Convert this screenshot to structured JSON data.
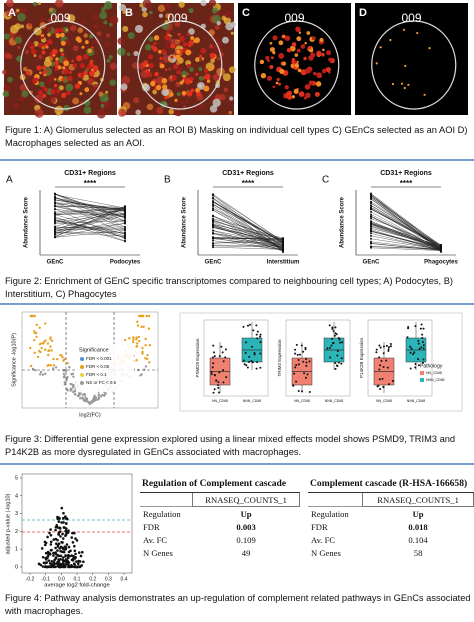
{
  "figure1": {
    "panels": [
      {
        "letter": "A",
        "id": "009"
      },
      {
        "letter": "B",
        "id": "009"
      },
      {
        "letter": "C",
        "id": "009"
      },
      {
        "letter": "D",
        "id": "009"
      }
    ],
    "caption": "Figure 1: A) Glomerulus selected as an ROI B) Masking on individual cell types C) GEnCs selected as an AOI D) Macrophages selected as an AOI."
  },
  "figure2": {
    "panels": [
      {
        "letter": "A",
        "title": "CD31+ Regions",
        "significance": "****",
        "y_label": "Abundance Score",
        "x_labels": [
          "GEnC",
          "Podocytes"
        ]
      },
      {
        "letter": "B",
        "title": "CD31+ Regions",
        "significance": "****",
        "y_label": "Abundance Score",
        "x_labels": [
          "GEnC",
          "Interstitium"
        ]
      },
      {
        "letter": "C",
        "title": "CD31+ Regions",
        "significance": "****",
        "y_label": "Abundance Score",
        "x_labels": [
          "GEnC",
          "Phagocytes"
        ]
      }
    ],
    "caption": "Figure 2: Enrichment of GEnC specific transcriptomes compared to neighbouring cell types; A) Podocytes, B) Interstitium, C) Phagocytes"
  },
  "figure3": {
    "volcano": {
      "y_label": "Significance -log10(P)",
      "x_label": "log2(FC)",
      "legend_title": "Significance",
      "legend": [
        "FDR < 0.001",
        "FDR < 0.05",
        "FDR < 0.1",
        "NS or FC < 0.5"
      ]
    },
    "boxplots": {
      "panels": [
        {
          "y_label": "PSMD9 Expression",
          "x_labels": [
            "NN_CD68",
            "NNN_CD68"
          ]
        },
        {
          "y_label": "TRIM3 Expression",
          "x_labels": [
            "NN_CD68",
            "NNN_CD68"
          ]
        },
        {
          "y_label": "P14K2B Expression",
          "x_labels": [
            "NN_CD68",
            "NNN_CD68"
          ]
        }
      ],
      "legend_title": "Pathology",
      "legend": [
        "NN_CD68",
        "NNN_CD68"
      ]
    },
    "caption": "Figure 3: Differential gene expression explored using a linear mixed effects model shows PSMD9, TRIM3 and P14K2B as more dysregulated in GEnCs associated with macrophages."
  },
  "figure4": {
    "volcano": {
      "y_label": "adjusted p-value (-log10)",
      "x_label": "average log2 fold-change",
      "yticks": [
        "0",
        "1",
        "2",
        "3",
        "4",
        "5"
      ],
      "xticks": [
        "-0.2",
        "-0.1",
        "0.0",
        "0.1",
        "0.2",
        "0.3",
        "0.4"
      ]
    },
    "tables": [
      {
        "title": "Regulation of Complement cascade",
        "column": "RNASEQ_COUNTS_1",
        "rows": [
          [
            "Regulation",
            "Up"
          ],
          [
            "FDR",
            "0.003"
          ],
          [
            "Av. FC",
            "0.109"
          ],
          [
            "N Genes",
            "49"
          ]
        ]
      },
      {
        "title": "Complement cascade (R-HSA-166658)",
        "column": "RNASEQ_COUNTS_1",
        "rows": [
          [
            "Regulation",
            "Up"
          ],
          [
            "FDR",
            "0.018"
          ],
          [
            "Av. FC",
            "0.104"
          ],
          [
            "N Genes",
            "58"
          ]
        ]
      }
    ],
    "caption": "Figure 4: Pathway analysis demonstrates an up-regulation of complement related pathways in GEnCs associated with macrophages."
  }
}
